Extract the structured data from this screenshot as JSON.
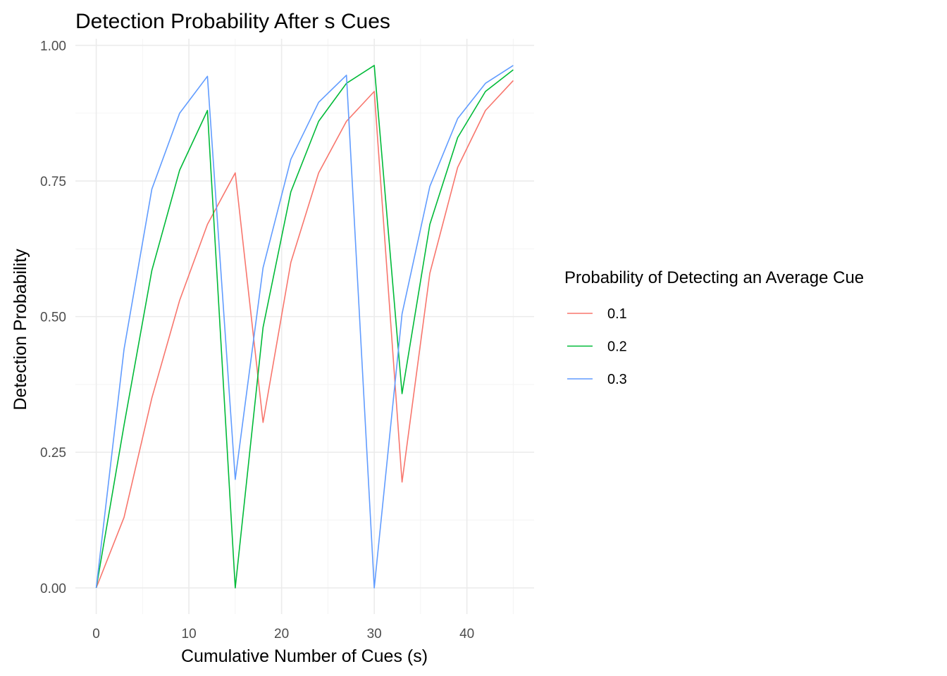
{
  "chart_data": {
    "type": "line",
    "title": "Detection Probability After s Cues",
    "xlabel": "Cumulative Number of Cues (s)",
    "ylabel": "Detection Probability",
    "xlim": [
      -2.25,
      47.25
    ],
    "ylim": [
      -0.0482,
      1.0122
    ],
    "x_ticks": [
      0,
      10,
      20,
      30,
      40
    ],
    "x_tick_labels": [
      "0",
      "10",
      "20",
      "30",
      "40"
    ],
    "y_ticks": [
      0,
      0.25,
      0.5,
      0.75,
      1.0
    ],
    "y_tick_labels": [
      "0.00",
      "0.25",
      "0.50",
      "0.75",
      "1.00"
    ],
    "grid": true,
    "legend": {
      "title": "Probability of Detecting an Average Cue",
      "position": "right"
    },
    "x": [
      0,
      3,
      6,
      9,
      12,
      15,
      18,
      21,
      24,
      27,
      30,
      33,
      36,
      39,
      42,
      45
    ],
    "series": [
      {
        "name": "0.1",
        "color": "#F8766D",
        "values": [
          0.0,
          0.13,
          0.35,
          0.53,
          0.67,
          0.765,
          0.305,
          0.6,
          0.765,
          0.86,
          0.915,
          0.195,
          0.58,
          0.775,
          0.88,
          0.935
        ]
      },
      {
        "name": "0.2",
        "color": "#00BA38",
        "values": [
          0.0,
          0.3,
          0.585,
          0.77,
          0.88,
          0.0,
          0.48,
          0.73,
          0.86,
          0.93,
          0.963,
          0.358,
          0.67,
          0.83,
          0.915,
          0.955
        ]
      },
      {
        "name": "0.3",
        "color": "#619CFF",
        "values": [
          0.0,
          0.44,
          0.735,
          0.875,
          0.943,
          0.2,
          0.59,
          0.79,
          0.895,
          0.945,
          0.0,
          0.505,
          0.74,
          0.865,
          0.93,
          0.963
        ]
      }
    ]
  }
}
